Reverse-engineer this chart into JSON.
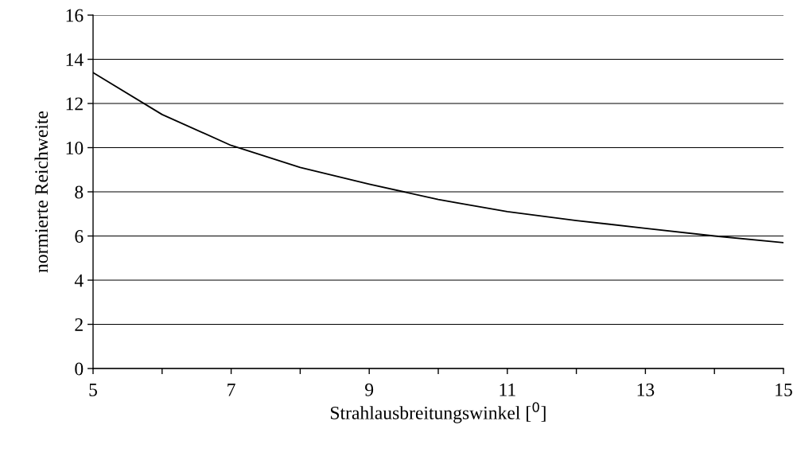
{
  "chart_data": {
    "type": "line",
    "xlabel": "Strahlausbreitungswinkel [$^{0}$]",
    "ylabel": "normierte Reichweite",
    "x": [
      5,
      6,
      7,
      8,
      9,
      10,
      11,
      12,
      13,
      14,
      15
    ],
    "series": [
      {
        "color": "#000000",
        "values": [
          13.4,
          11.5,
          10.1,
          9.1,
          8.35,
          7.65,
          7.1,
          6.7,
          6.35,
          6.0,
          5.7
        ]
      }
    ],
    "xlim": [
      5,
      15
    ],
    "xticks": [
      5,
      {
        "value": 6,
        "label": null
      },
      7,
      {
        "value": 8,
        "label": null
      },
      9,
      {
        "value": 10,
        "label": null
      },
      11,
      {
        "value": 12,
        "label": null
      },
      13,
      {
        "value": 14,
        "label": null
      },
      15
    ],
    "ylim": [
      0,
      16
    ],
    "yticks": [
      0,
      2,
      4,
      6,
      8,
      10,
      12,
      14,
      16
    ],
    "grid": "y",
    "legend": false,
    "marker": "none",
    "line_style": "solid"
  }
}
